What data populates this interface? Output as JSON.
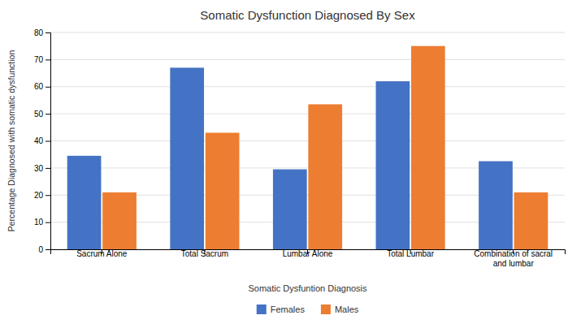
{
  "chart_data": {
    "type": "bar",
    "title": "Somatic Dysfunction Diagnosed By Sex",
    "xlabel": "Somatic Dysfuntion Diagnosis",
    "ylabel": "Percentage Diagnosed with somatic dysfunction",
    "categories": [
      "Sacrum Alone",
      "Total Sacrum",
      "Lumbar Alone",
      "Total Lumbar",
      "Combination of sacral\nand lumbar"
    ],
    "series": [
      {
        "name": "Females",
        "color": "#4472C4",
        "values": [
          34.5,
          67.0,
          29.5,
          62.0,
          32.5
        ]
      },
      {
        "name": "Males",
        "color": "#ED7D31",
        "values": [
          21.0,
          43.0,
          53.5,
          75.0,
          21.0
        ]
      }
    ],
    "ylim": [
      0,
      80
    ],
    "yticks": [
      0,
      10,
      20,
      30,
      40,
      50,
      60,
      70,
      80
    ],
    "grid": true,
    "legend": "bottom"
  }
}
